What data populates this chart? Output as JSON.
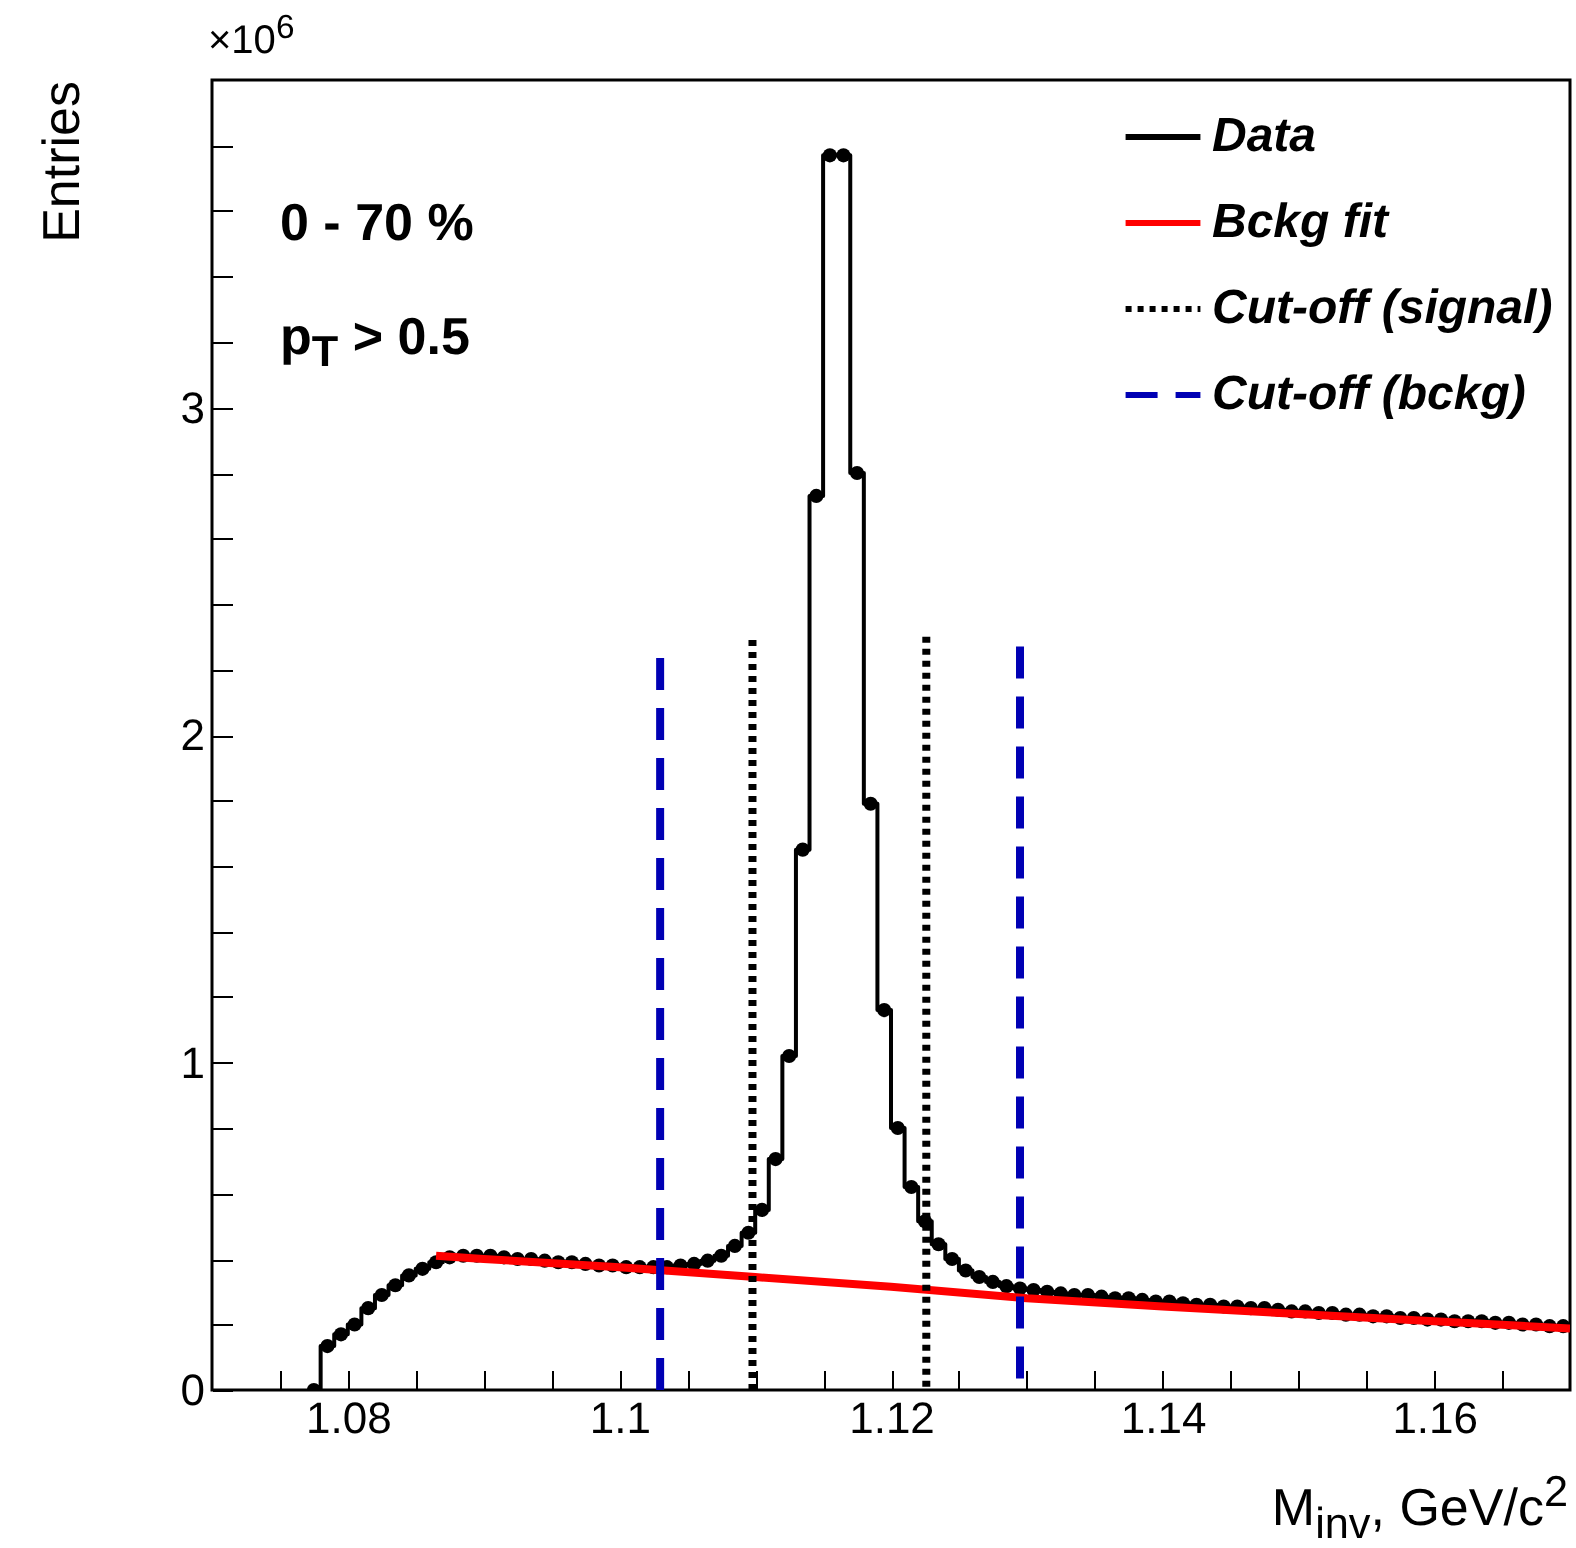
{
  "chart_data": {
    "type": "step",
    "xlabel": "M$_{inv}$, GeV/c$^{2}$",
    "ylabel": "Entries",
    "annotations": [
      "0 - 70 %",
      "p$_{T}$ > 0.5",
      "×10$^{6}$"
    ],
    "xlim": [
      1.07,
      1.17
    ],
    "xticks": [
      {
        "value": 1.075,
        "label": null
      },
      1.08,
      {
        "value": 1.085,
        "label": null
      },
      1.1,
      {
        "value": 1.09,
        "label": null
      },
      {
        "value": 1.095,
        "label": null
      },
      {
        "value": 1.105,
        "label": null
      },
      1.12,
      {
        "value": 1.11,
        "label": null
      },
      {
        "value": 1.115,
        "label": null
      },
      {
        "value": 1.125,
        "label": null
      },
      1.14,
      {
        "value": 1.13,
        "label": null
      },
      {
        "value": 1.135,
        "label": null
      },
      {
        "value": 1.145,
        "label": null
      },
      1.16,
      {
        "value": 1.15,
        "label": null
      },
      {
        "value": 1.155,
        "label": null
      },
      {
        "value": 1.165,
        "label": null
      }
    ],
    "ylim": [
      0,
      4
    ],
    "yticks": [
      0,
      {
        "value": 0.2,
        "label": null
      },
      {
        "value": 0.4,
        "label": null
      },
      {
        "value": 0.6,
        "label": null
      },
      {
        "value": 0.8,
        "label": null
      },
      1,
      {
        "value": 1.2,
        "label": null
      },
      {
        "value": 1.4,
        "label": null
      },
      {
        "value": 1.6,
        "label": null
      },
      {
        "value": 1.8,
        "label": null
      },
      2,
      {
        "value": 2.2,
        "label": null
      },
      {
        "value": 2.4,
        "label": null
      },
      {
        "value": 2.6,
        "label": null
      },
      {
        "value": 2.8,
        "label": null
      },
      3,
      {
        "value": 3.2,
        "label": null
      },
      {
        "value": 3.4,
        "label": null
      },
      {
        "value": 3.6,
        "label": null
      },
      {
        "value": 3.8,
        "label": null
      }
    ],
    "legend": "top right",
    "series": [
      {
        "name": "Data",
        "type": "step",
        "marker": "circle",
        "line_style": "solid",
        "color": "#000000",
        "x": [
          1.0775,
          1.0785,
          1.0795,
          1.0805,
          1.0815,
          1.0825,
          1.0835,
          1.0845,
          1.0855,
          1.0865,
          1.0875,
          1.0885,
          1.0895,
          1.0905,
          1.0915,
          1.0925,
          1.0935,
          1.0945,
          1.0955,
          1.0965,
          1.0975,
          1.0985,
          1.0995,
          1.1005,
          1.1015,
          1.1025,
          1.1035,
          1.1045,
          1.1055,
          1.1065,
          1.1075,
          1.1085,
          1.1095,
          1.1105,
          1.1115,
          1.1125,
          1.1135,
          1.1145,
          1.1155,
          1.1165,
          1.1175,
          1.1185,
          1.1195,
          1.1205,
          1.1215,
          1.1225,
          1.1235,
          1.1245,
          1.1255,
          1.1265,
          1.1275,
          1.1285,
          1.1295,
          1.1305,
          1.1315,
          1.1325,
          1.1335,
          1.1345,
          1.1355,
          1.1365,
          1.1375,
          1.1385,
          1.1395,
          1.1405,
          1.1415,
          1.1425,
          1.1435,
          1.1445,
          1.1455,
          1.1465,
          1.1475,
          1.1485,
          1.1495,
          1.1505,
          1.1515,
          1.1525,
          1.1535,
          1.1545,
          1.1555,
          1.1565,
          1.1575,
          1.1585,
          1.1595,
          1.1605,
          1.1615,
          1.1625,
          1.1635,
          1.1645,
          1.1655,
          1.1665,
          1.1675,
          1.1685,
          1.1695
        ],
        "values": [
          0,
          0.134,
          0.17,
          0.2,
          0.25,
          0.29,
          0.32,
          0.35,
          0.37,
          0.39,
          0.405,
          0.41,
          0.41,
          0.41,
          0.405,
          0.4,
          0.4,
          0.395,
          0.39,
          0.39,
          0.385,
          0.38,
          0.38,
          0.375,
          0.375,
          0.375,
          0.375,
          0.38,
          0.385,
          0.395,
          0.41,
          0.44,
          0.48,
          0.55,
          0.705,
          1.02,
          1.65,
          2.73,
          3.77,
          3.77,
          2.8,
          1.79,
          1.16,
          0.8,
          0.62,
          0.515,
          0.445,
          0.4,
          0.365,
          0.345,
          0.33,
          0.317,
          0.31,
          0.305,
          0.3,
          0.295,
          0.29,
          0.29,
          0.285,
          0.28,
          0.28,
          0.275,
          0.27,
          0.27,
          0.265,
          0.26,
          0.26,
          0.255,
          0.255,
          0.25,
          0.25,
          0.245,
          0.24,
          0.24,
          0.235,
          0.235,
          0.23,
          0.23,
          0.225,
          0.225,
          0.22,
          0.22,
          0.215,
          0.215,
          0.21,
          0.21,
          0.21,
          0.205,
          0.205,
          0.2,
          0.2,
          0.195,
          0.195
        ]
      },
      {
        "name": "Bckg fit",
        "type": "line",
        "line_style": "solid",
        "color": "#ff0000",
        "x": [
          1.0865,
          1.09,
          1.1,
          1.11,
          1.12,
          1.13,
          1.14,
          1.15,
          1.16,
          1.17
        ],
        "values": [
          0.41,
          0.4,
          0.375,
          0.345,
          0.315,
          0.28,
          0.255,
          0.232,
          0.21,
          0.188
        ]
      },
      {
        "name": "Cut-off (signal)",
        "type": "line",
        "line_style": "dotted",
        "color": "#000000",
        "x": [
          1.1098,
          1.1098,
          1.116,
          1.1226,
          1.1226
        ],
        "values": [
          0,
          2.3,
          null,
          2.3,
          0
        ]
      },
      {
        "name": "Cut-off (bckg)",
        "type": "line",
        "line_style": "dashed",
        "color": "#0000b4",
        "x": [
          1.103,
          1.103,
          1.116,
          1.1295,
          1.1295
        ],
        "values": [
          0,
          2.27,
          null,
          2.27,
          0
        ]
      }
    ]
  }
}
